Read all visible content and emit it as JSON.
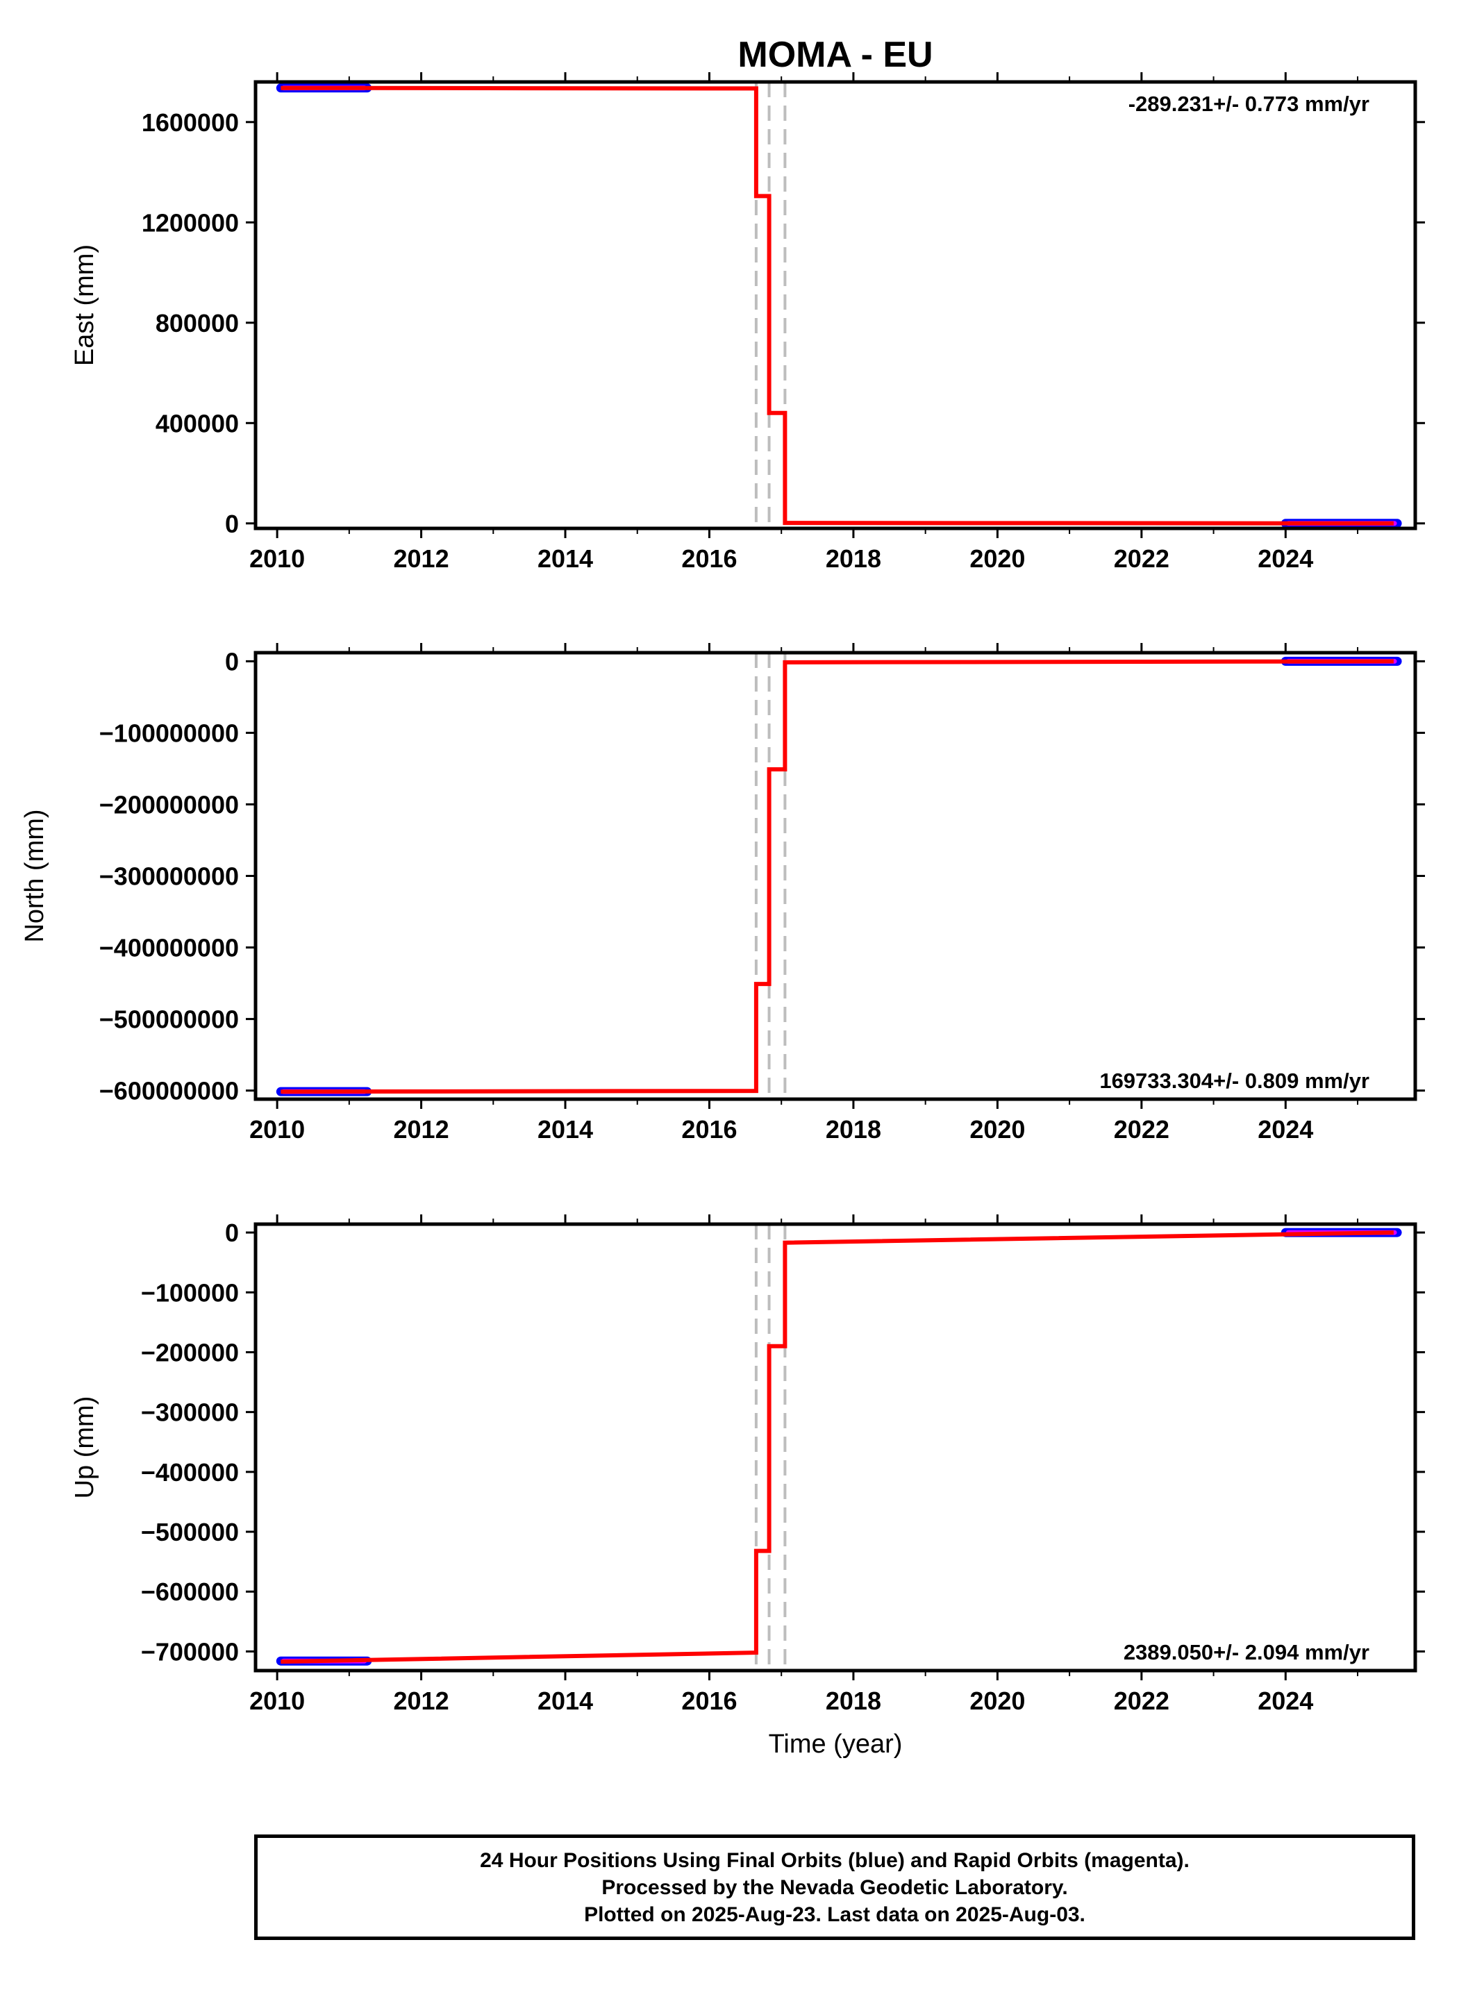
{
  "title": "MOMA - EU",
  "colors": {
    "model_line": "#ff0000",
    "final_orbits": "#0000ff",
    "rapid_orbits": "#ff00ff",
    "event_lines": "#bdbdbd",
    "axes": "#000000"
  },
  "chart_data": [
    {
      "type": "line",
      "component": "east",
      "ylabel": "East (mm)",
      "xlabel": "",
      "xlim": [
        2009.7,
        2025.8
      ],
      "ylim": [
        -20000,
        1760000
      ],
      "x_ticks": [
        2010,
        2012,
        2014,
        2016,
        2018,
        2020,
        2022,
        2024
      ],
      "y_ticks": [
        0,
        400000,
        800000,
        1200000,
        1600000
      ],
      "y_tick_labels": [
        "0",
        "400000",
        "800000",
        "1200000",
        "1600000"
      ],
      "rate_label": "-289.231+/- 0.773 mm/yr",
      "rate_position": "top-right",
      "event_lines_x": [
        2016.65,
        2016.83,
        2017.05
      ],
      "model": {
        "x": [
          2010.05,
          2016.65,
          2016.65,
          2016.83,
          2016.83,
          2017.05,
          2017.05,
          2025.5
        ],
        "y": [
          1736000,
          1734000,
          1305000,
          1305000,
          440000,
          440000,
          2000,
          0
        ]
      },
      "observations": [
        {
          "name": "",
          "x_range": [
            2010.05,
            2011.25
          ],
          "y": 1736000
        },
        {
          "name": "",
          "x_range": [
            2024.0,
            2025.55
          ],
          "y": 0
        }
      ]
    },
    {
      "type": "line",
      "component": "north",
      "ylabel": "North (mm)",
      "xlabel": "",
      "xlim": [
        2009.7,
        2025.8
      ],
      "ylim": [
        -612000000,
        12000000
      ],
      "x_ticks": [
        2010,
        2012,
        2014,
        2016,
        2018,
        2020,
        2022,
        2024
      ],
      "y_ticks": [
        0,
        -100000000,
        -200000000,
        -300000000,
        -400000000,
        -500000000,
        -600000000
      ],
      "y_tick_labels": [
        "0",
        "−100000000",
        "−200000000",
        "−300000000",
        "−400000000",
        "−500000000",
        "−600000000"
      ],
      "rate_label": "169733.304+/- 0.809 mm/yr",
      "rate_position": "bottom-right",
      "event_lines_x": [
        2016.65,
        2016.83,
        2017.05
      ],
      "model": {
        "x": [
          2010.05,
          2016.65,
          2016.65,
          2016.83,
          2016.83,
          2017.05,
          2017.05,
          2025.5
        ],
        "y": [
          -601500000,
          -600500000,
          -451000000,
          -451000000,
          -151000000,
          -151000000,
          -1500000,
          0
        ]
      },
      "observations": [
        {
          "name": "",
          "x_range": [
            2010.05,
            2011.25
          ],
          "y": -601500000
        },
        {
          "name": "",
          "x_range": [
            2024.0,
            2025.55
          ],
          "y": 0
        }
      ]
    },
    {
      "type": "line",
      "component": "up",
      "ylabel": "Up (mm)",
      "xlabel": "Time (year)",
      "xlim": [
        2009.7,
        2025.8
      ],
      "ylim": [
        -732000,
        14000
      ],
      "x_ticks": [
        2010,
        2012,
        2014,
        2016,
        2018,
        2020,
        2022,
        2024
      ],
      "y_ticks": [
        0,
        -100000,
        -200000,
        -300000,
        -400000,
        -500000,
        -600000,
        -700000
      ],
      "y_tick_labels": [
        "0",
        "−100000",
        "−200000",
        "−300000",
        "−400000",
        "−500000",
        "−600000",
        "−700000"
      ],
      "rate_label": "2389.050+/- 2.094 mm/yr",
      "rate_position": "bottom-right",
      "event_lines_x": [
        2016.65,
        2016.83,
        2017.05
      ],
      "model": {
        "x": [
          2010.05,
          2016.65,
          2016.65,
          2016.83,
          2016.83,
          2017.05,
          2017.05,
          2025.5
        ],
        "y": [
          -717000,
          -702000,
          -532000,
          -532000,
          -190000,
          -190000,
          -17000,
          0
        ]
      },
      "observations": [
        {
          "name": "",
          "x_range": [
            2010.05,
            2011.25
          ],
          "y": -716000
        },
        {
          "name": "",
          "x_range": [
            2024.0,
            2025.55
          ],
          "y": 0
        }
      ]
    }
  ],
  "caption": {
    "line1": "24 Hour Positions Using Final Orbits (blue) and Rapid Orbits (magenta).",
    "line2": "Processed by the Nevada Geodetic Laboratory.",
    "line3": "Plotted on 2025-Aug-23. Last data on 2025-Aug-03."
  }
}
